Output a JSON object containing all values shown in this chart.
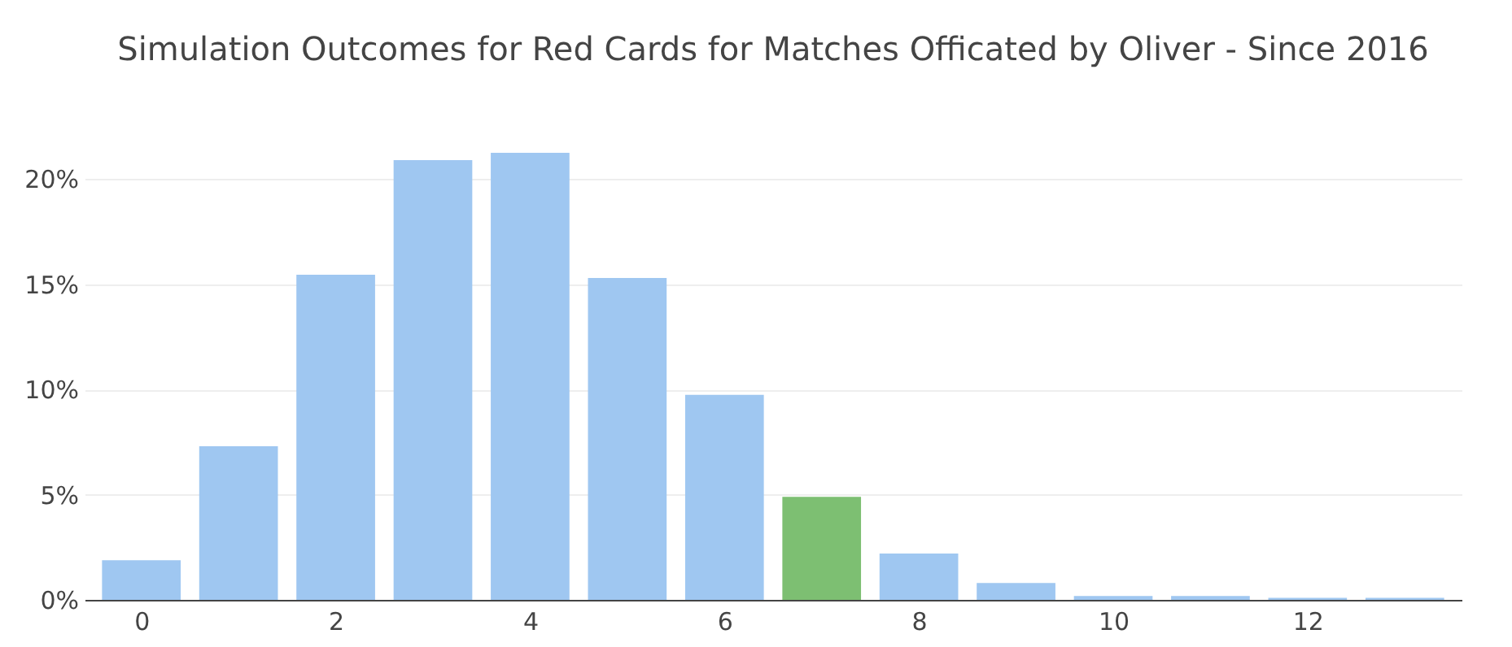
{
  "chart_data": {
    "type": "bar",
    "title": "Simulation Outcomes for Red Cards for Matches Officated by Oliver - Since 2016",
    "x": [
      0,
      1,
      2,
      3,
      4,
      5,
      6,
      7,
      8,
      9,
      10,
      11,
      12,
      13
    ],
    "values": [
      1.88,
      7.3,
      15.45,
      20.9,
      21.25,
      15.3,
      9.75,
      4.9,
      2.2,
      0.8,
      0.18,
      0.18,
      0.1,
      0.1
    ],
    "colors": [
      "#9fc7f1",
      "#9fc7f1",
      "#9fc7f1",
      "#9fc7f1",
      "#9fc7f1",
      "#9fc7f1",
      "#9fc7f1",
      "#7dbf72",
      "#9fc7f1",
      "#9fc7f1",
      "#9fc7f1",
      "#9fc7f1",
      "#9fc7f1",
      "#9fc7f1"
    ],
    "xlim": [
      -0.5,
      13.5
    ],
    "ylim": [
      0,
      21.25
    ],
    "xticks": [
      0,
      2,
      4,
      6,
      8,
      10,
      12
    ],
    "yticks": [
      {
        "value": 0,
        "label": "0%"
      },
      {
        "value": 5,
        "label": "5%"
      },
      {
        "value": 10,
        "label": "10%"
      },
      {
        "value": 15,
        "label": "15%"
      },
      {
        "value": 20,
        "label": "20%"
      }
    ],
    "grid": "y",
    "legend": false
  }
}
